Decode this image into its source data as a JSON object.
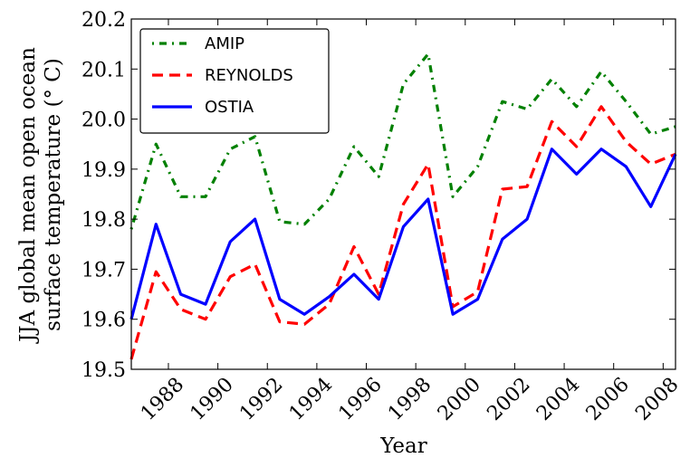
{
  "chart_data": {
    "type": "line",
    "xlabel": "Year",
    "ylabel_lines": [
      "JJA global mean open ocean",
      "surface temperature (° C)"
    ],
    "xlim": [
      1986.5,
      2008.5
    ],
    "ylim": [
      19.5,
      20.2
    ],
    "x_ticks": [
      1988,
      1990,
      1992,
      1994,
      1996,
      1998,
      2000,
      2002,
      2004,
      2006,
      2008
    ],
    "x_tick_labels": [
      "1988",
      "1990",
      "1992",
      "1994",
      "1996",
      "1998",
      "2000",
      "2002",
      "2004",
      "2006",
      "2008"
    ],
    "y_ticks": [
      19.5,
      19.6,
      19.7,
      19.8,
      19.9,
      20.0,
      20.1,
      20.2
    ],
    "y_tick_labels": [
      "19.5",
      "19.6",
      "19.7",
      "19.8",
      "19.9",
      "20.0",
      "20.1",
      "20.2"
    ],
    "legend_position": "top-left",
    "grid": false,
    "series": [
      {
        "name": "AMIP",
        "color": "#008000",
        "style": "dashdot",
        "x": [
          1986.5,
          1987.5,
          1988.5,
          1989.5,
          1990.5,
          1991.5,
          1992.5,
          1993.5,
          1994.5,
          1995.5,
          1996.5,
          1997.5,
          1998.5,
          1999.5,
          2000.5,
          2001.5,
          2002.5,
          2003.5,
          2004.5,
          2005.5,
          2006.5,
          2007.5,
          2008.5
        ],
        "y": [
          19.78,
          19.95,
          19.845,
          19.845,
          19.94,
          19.965,
          19.795,
          19.79,
          19.84,
          19.945,
          19.885,
          20.07,
          20.13,
          19.845,
          19.905,
          20.035,
          20.02,
          20.08,
          20.025,
          20.095,
          20.035,
          19.97,
          19.985
        ]
      },
      {
        "name": "REYNOLDS",
        "color": "#ff0000",
        "style": "dashed",
        "x": [
          1986.5,
          1987.5,
          1988.5,
          1989.5,
          1990.5,
          1991.5,
          1992.5,
          1993.5,
          1994.5,
          1995.5,
          1996.5,
          1997.5,
          1998.5,
          1999.5,
          2000.5,
          2001.5,
          2002.5,
          2003.5,
          2004.5,
          2005.5,
          2006.5,
          2007.5,
          2008.5
        ],
        "y": [
          19.52,
          19.695,
          19.62,
          19.6,
          19.685,
          19.71,
          19.595,
          19.59,
          19.63,
          19.745,
          19.65,
          19.83,
          19.91,
          19.625,
          19.655,
          19.86,
          19.865,
          19.995,
          19.945,
          20.025,
          19.955,
          19.91,
          19.93
        ]
      },
      {
        "name": "OSTIA",
        "color": "#0000ff",
        "style": "solid",
        "x": [
          1986.5,
          1987.5,
          1988.5,
          1989.5,
          1990.5,
          1991.5,
          1992.5,
          1993.5,
          1994.5,
          1995.5,
          1996.5,
          1997.5,
          1998.5,
          1999.5,
          2000.5,
          2001.5,
          2002.5,
          2003.5,
          2004.5,
          2005.5,
          2006.5,
          2007.5,
          2008.5
        ],
        "y": [
          19.6,
          19.79,
          19.65,
          19.63,
          19.755,
          19.8,
          19.64,
          19.61,
          19.645,
          19.69,
          19.64,
          19.785,
          19.84,
          19.61,
          19.64,
          19.76,
          19.8,
          19.94,
          19.89,
          19.94,
          19.905,
          19.825,
          19.93
        ]
      }
    ]
  }
}
